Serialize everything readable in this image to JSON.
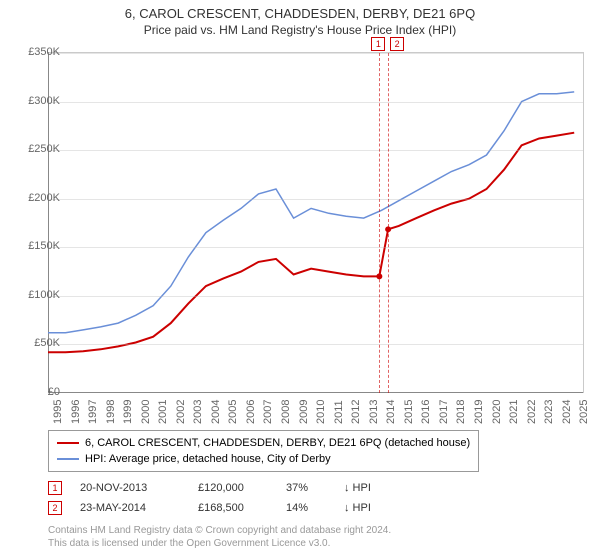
{
  "title": {
    "main": "6, CAROL CRESCENT, CHADDESDEN, DERBY, DE21 6PQ",
    "sub": "Price paid vs. HM Land Registry's House Price Index (HPI)"
  },
  "chart": {
    "type": "line",
    "background_color": "#ffffff",
    "grid_color": "rgba(180,180,180,0.35)",
    "axis_color": "#888888",
    "y_axis": {
      "min": 0,
      "max": 350000,
      "step": 50000,
      "labels": [
        "£0",
        "£50K",
        "£100K",
        "£150K",
        "£200K",
        "£250K",
        "£300K",
        "£350K"
      ]
    },
    "x_axis": {
      "min": 1995,
      "max": 2025.5,
      "ticks": [
        1995,
        1996,
        1997,
        1998,
        1999,
        2000,
        2001,
        2002,
        2003,
        2004,
        2005,
        2006,
        2007,
        2008,
        2009,
        2010,
        2011,
        2012,
        2013,
        2014,
        2015,
        2016,
        2017,
        2018,
        2019,
        2020,
        2021,
        2022,
        2023,
        2024,
        2025
      ]
    },
    "series": [
      {
        "name": "property",
        "color": "#cc0000",
        "width": 2,
        "points": [
          [
            1995,
            42000
          ],
          [
            1996,
            42000
          ],
          [
            1997,
            43000
          ],
          [
            1998,
            45000
          ],
          [
            1999,
            48000
          ],
          [
            2000,
            52000
          ],
          [
            2001,
            58000
          ],
          [
            2002,
            72000
          ],
          [
            2003,
            92000
          ],
          [
            2004,
            110000
          ],
          [
            2005,
            118000
          ],
          [
            2006,
            125000
          ],
          [
            2007,
            135000
          ],
          [
            2008,
            138000
          ],
          [
            2009,
            122000
          ],
          [
            2010,
            128000
          ],
          [
            2011,
            125000
          ],
          [
            2012,
            122000
          ],
          [
            2013,
            120000
          ],
          [
            2013.89,
            120000
          ],
          [
            2014.39,
            168500
          ],
          [
            2015,
            172000
          ],
          [
            2016,
            180000
          ],
          [
            2017,
            188000
          ],
          [
            2018,
            195000
          ],
          [
            2019,
            200000
          ],
          [
            2020,
            210000
          ],
          [
            2021,
            230000
          ],
          [
            2022,
            255000
          ],
          [
            2023,
            262000
          ],
          [
            2024,
            265000
          ],
          [
            2025,
            268000
          ]
        ]
      },
      {
        "name": "hpi",
        "color": "#6a8fd8",
        "width": 1.5,
        "points": [
          [
            1995,
            62000
          ],
          [
            1996,
            62000
          ],
          [
            1997,
            65000
          ],
          [
            1998,
            68000
          ],
          [
            1999,
            72000
          ],
          [
            2000,
            80000
          ],
          [
            2001,
            90000
          ],
          [
            2002,
            110000
          ],
          [
            2003,
            140000
          ],
          [
            2004,
            165000
          ],
          [
            2005,
            178000
          ],
          [
            2006,
            190000
          ],
          [
            2007,
            205000
          ],
          [
            2008,
            210000
          ],
          [
            2009,
            180000
          ],
          [
            2010,
            190000
          ],
          [
            2011,
            185000
          ],
          [
            2012,
            182000
          ],
          [
            2013,
            180000
          ],
          [
            2014,
            188000
          ],
          [
            2015,
            198000
          ],
          [
            2016,
            208000
          ],
          [
            2017,
            218000
          ],
          [
            2018,
            228000
          ],
          [
            2019,
            235000
          ],
          [
            2020,
            245000
          ],
          [
            2021,
            270000
          ],
          [
            2022,
            300000
          ],
          [
            2023,
            308000
          ],
          [
            2024,
            308000
          ],
          [
            2025,
            310000
          ]
        ]
      }
    ],
    "sale_events": [
      {
        "label": "1",
        "year": 2013.89,
        "price": 120000,
        "color": "#cc0000"
      },
      {
        "label": "2",
        "year": 2014.39,
        "price": 168500,
        "color": "#cc0000"
      }
    ]
  },
  "legend": {
    "items": [
      {
        "color": "#cc0000",
        "label": "6, CAROL CRESCENT, CHADDESDEN, DERBY, DE21 6PQ (detached house)"
      },
      {
        "color": "#6a8fd8",
        "label": "HPI: Average price, detached house, City of Derby"
      }
    ]
  },
  "sales": [
    {
      "marker": "1",
      "color": "#cc0000",
      "date": "20-NOV-2013",
      "price": "£120,000",
      "pct": "37%",
      "arrow": "↓ HPI"
    },
    {
      "marker": "2",
      "color": "#cc0000",
      "date": "23-MAY-2014",
      "price": "£168,500",
      "pct": "14%",
      "arrow": "↓ HPI"
    }
  ],
  "footer": {
    "line1": "Contains HM Land Registry data © Crown copyright and database right 2024.",
    "line2": "This data is licensed under the Open Government Licence v3.0."
  }
}
